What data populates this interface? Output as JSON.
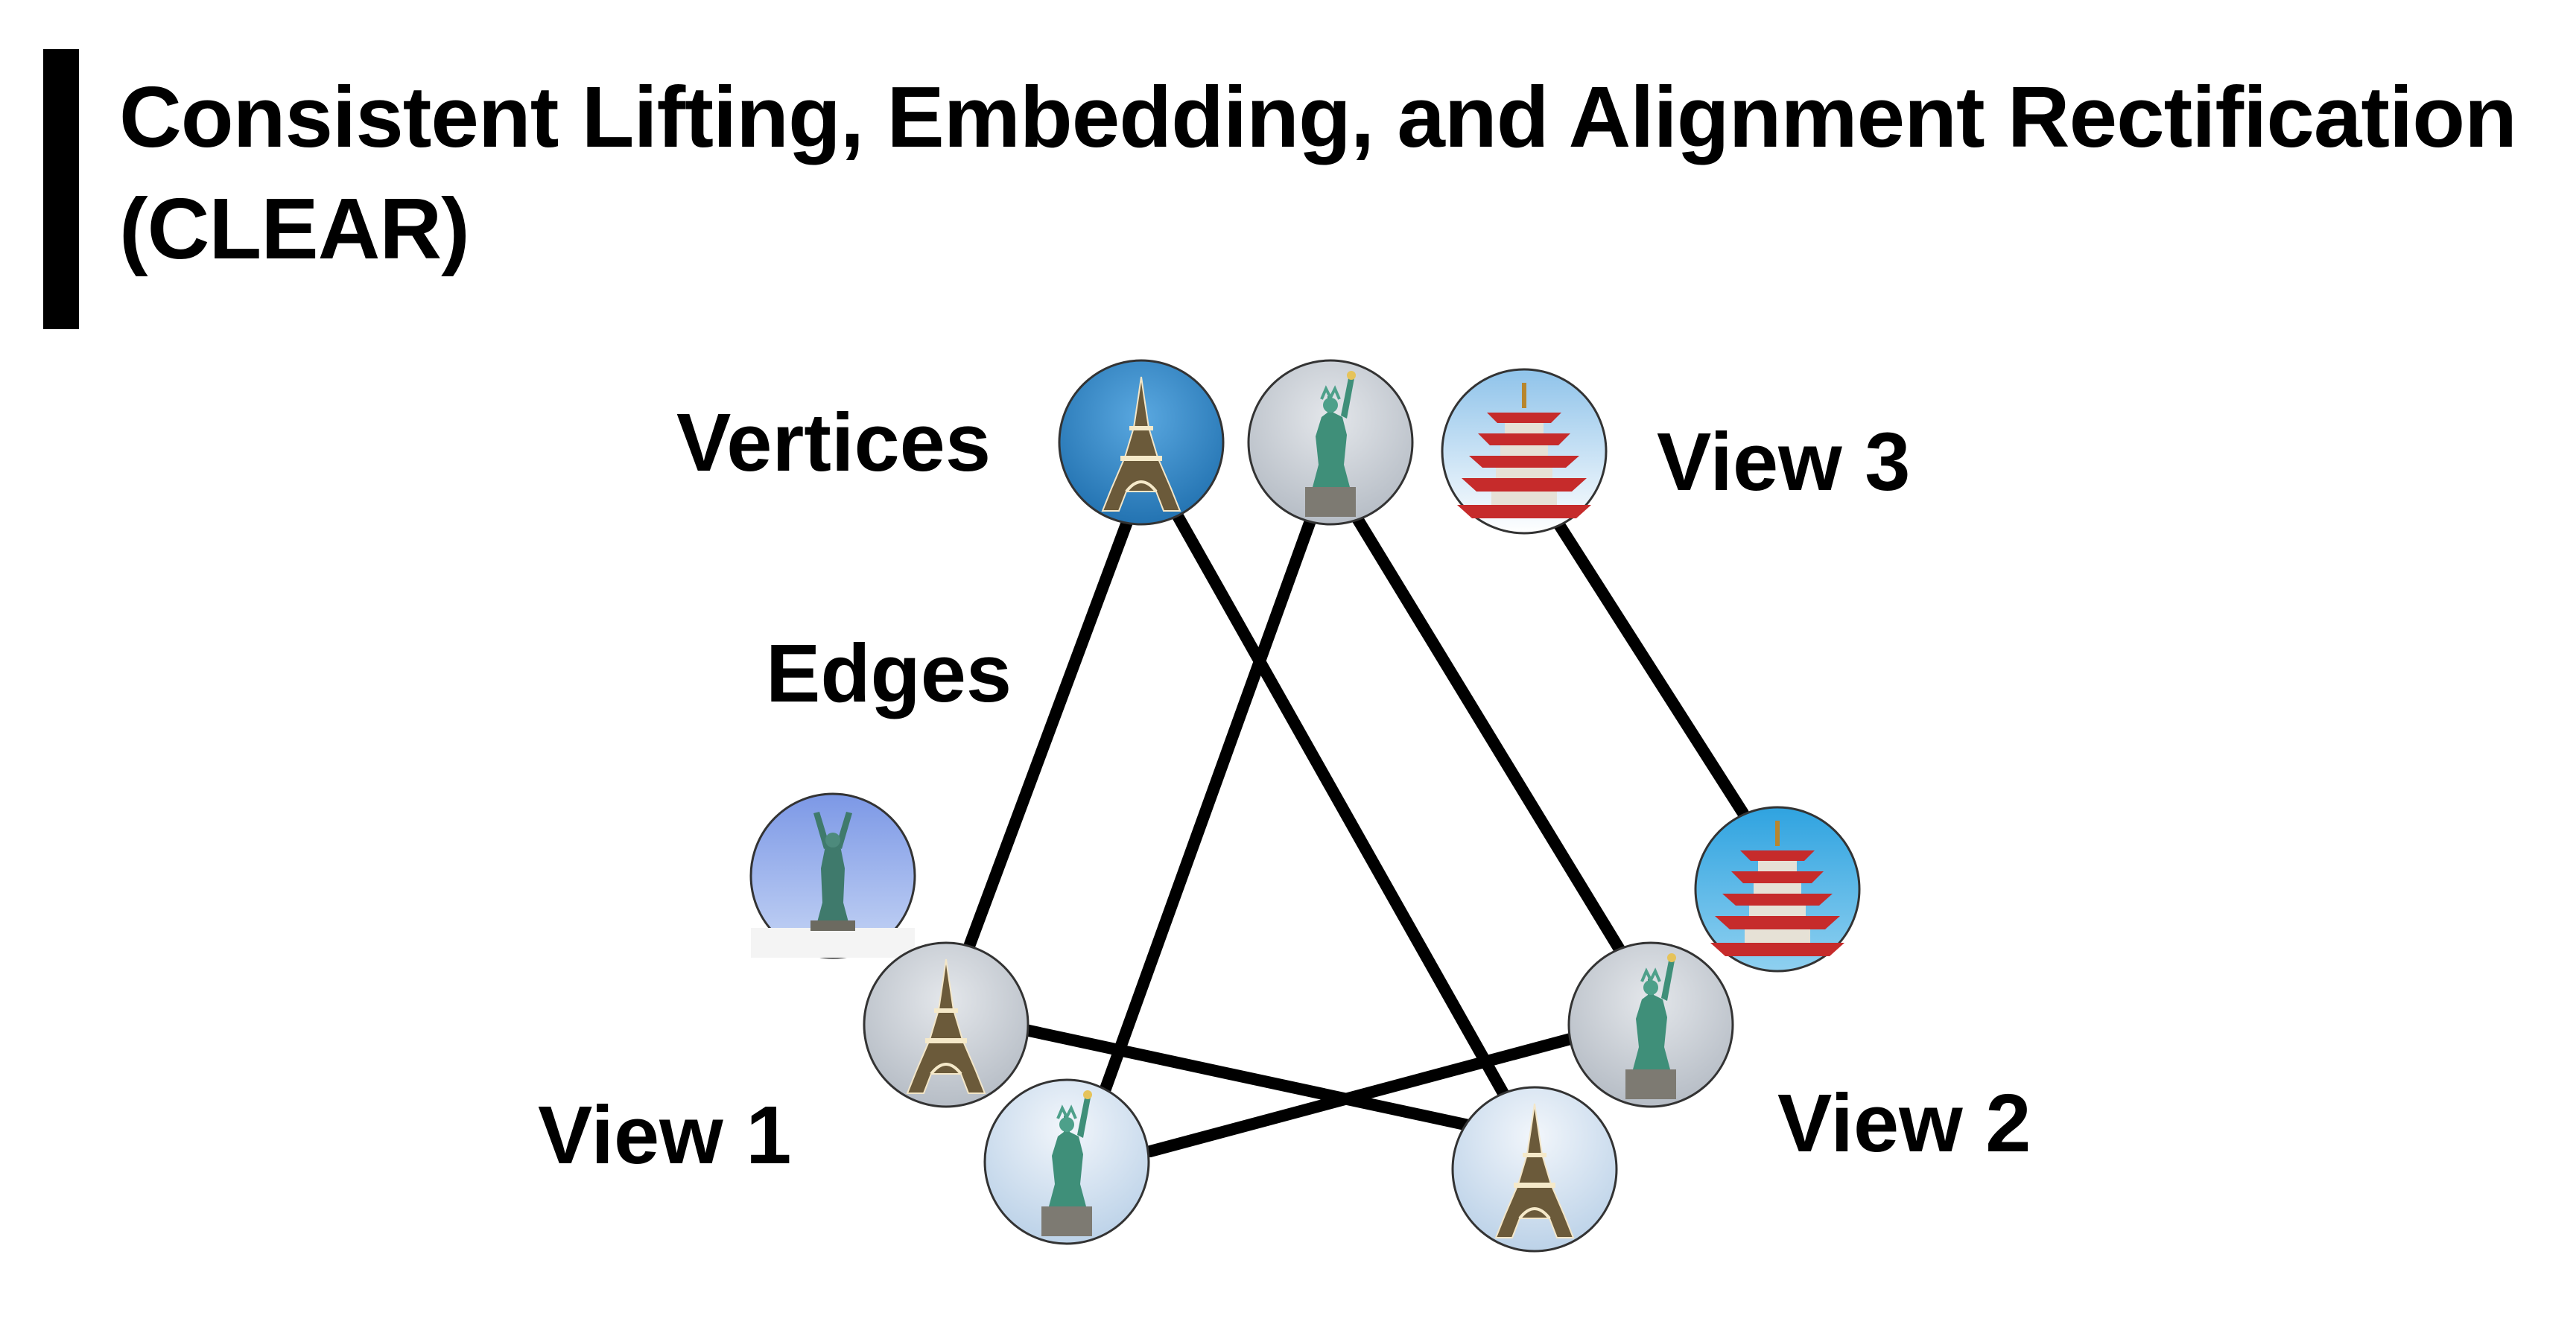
{
  "title": "Consistent Lifting, Embedding, and Alignment Rectification (CLEAR)",
  "labels": {
    "vertices": "Vertices",
    "edges": "Edges",
    "view1": "View 1",
    "view2": "View 2",
    "view3": "View 3"
  },
  "colors": {
    "eiffel_sky": "#2f86c4",
    "statue_sky": "#cdd3da",
    "pagoda_red": "#c62b2b",
    "pagoda_sky": "#4aa7de",
    "edge": "#000000"
  },
  "vertices": [
    {
      "id": "v3-eiffel",
      "view": 3,
      "subject": "eiffel-tower-icon",
      "bg": "blue"
    },
    {
      "id": "v3-statue",
      "view": 3,
      "subject": "statue-of-liberty-icon",
      "bg": "gray"
    },
    {
      "id": "v3-pagoda",
      "view": 3,
      "subject": "pagoda-icon",
      "bg": "light"
    },
    {
      "id": "v1-statue-top",
      "view": 1,
      "subject": "statue-of-liberty-icon",
      "bg": "blue"
    },
    {
      "id": "v1-eiffel",
      "view": 1,
      "subject": "eiffel-tower-icon",
      "bg": "gray"
    },
    {
      "id": "v1-statue",
      "view": 1,
      "subject": "statue-of-liberty-icon",
      "bg": "blue"
    },
    {
      "id": "v2-pagoda",
      "view": 2,
      "subject": "pagoda-icon",
      "bg": "blue"
    },
    {
      "id": "v2-statue",
      "view": 2,
      "subject": "statue-of-liberty-icon",
      "bg": "gray"
    },
    {
      "id": "v2-eiffel",
      "view": 2,
      "subject": "eiffel-tower-icon",
      "bg": "light"
    }
  ],
  "edges": [
    [
      "v3-eiffel",
      "v1-eiffel"
    ],
    [
      "v3-eiffel",
      "v2-eiffel"
    ],
    [
      "v3-statue",
      "v1-statue"
    ],
    [
      "v3-statue",
      "v2-statue"
    ],
    [
      "v3-pagoda",
      "v2-pagoda"
    ],
    [
      "v1-eiffel",
      "v2-eiffel"
    ],
    [
      "v1-statue",
      "v2-statue"
    ]
  ]
}
